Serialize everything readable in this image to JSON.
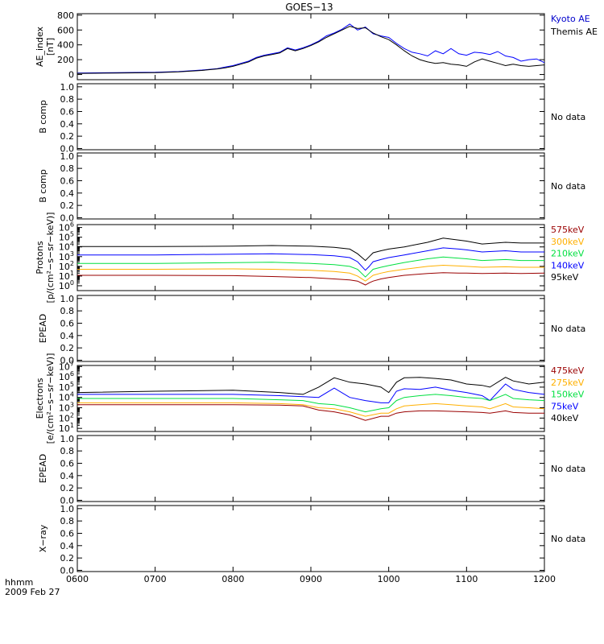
{
  "title": "GOES−13",
  "time_axis": {
    "ticks": [
      "0600",
      "0700",
      "0800",
      "0900",
      "1000",
      "1100",
      "1200"
    ],
    "range_hours": [
      6,
      12
    ],
    "label_line1": "hhmm",
    "label_line2": "2009 Feb 27"
  },
  "colors": {
    "black": "#000000",
    "blue": "#0000ff",
    "green": "#00e040",
    "orange": "#ffb000",
    "red": "#9a0000",
    "kyoto_legend": "#0000cc"
  },
  "chart_data": [
    {
      "id": "ae",
      "type": "line",
      "ylabel_line1": "AE_index",
      "ylabel_line2": "[nT]",
      "yscale": "linear",
      "ylim": [
        -70,
        820
      ],
      "yticks": [
        800,
        600,
        400,
        200,
        0
      ],
      "side_labels": [
        {
          "text": "Kyoto AE",
          "color": "#0000cc"
        },
        {
          "text": "Themis AE",
          "color": "#000000"
        }
      ],
      "series": [
        {
          "name": "Kyoto AE",
          "color": "#0000ff",
          "x": [
            6.0,
            6.5,
            7.0,
            7.3,
            7.6,
            7.8,
            7.9,
            8.0,
            8.1,
            8.2,
            8.3,
            8.4,
            8.5,
            8.6,
            8.7,
            8.8,
            8.9,
            9.0,
            9.1,
            9.2,
            9.3,
            9.4,
            9.5,
            9.6,
            9.7,
            9.8,
            9.9,
            10.0,
            10.1,
            10.2,
            10.3,
            10.4,
            10.5,
            10.6,
            10.7,
            10.8,
            10.9,
            11.0,
            11.1,
            11.2,
            11.3,
            11.4,
            11.5,
            11.6,
            11.7,
            11.8,
            11.9,
            12.0
          ],
          "y": [
            20,
            25,
            30,
            40,
            60,
            80,
            100,
            120,
            150,
            180,
            230,
            260,
            280,
            300,
            360,
            330,
            360,
            400,
            450,
            520,
            560,
            610,
            680,
            600,
            640,
            550,
            520,
            500,
            420,
            350,
            300,
            280,
            250,
            320,
            280,
            350,
            280,
            260,
            300,
            290,
            270,
            310,
            250,
            230,
            180,
            200,
            210,
            160
          ]
        },
        {
          "name": "Themis AE",
          "color": "#000000",
          "x": [
            6.0,
            6.5,
            7.0,
            7.3,
            7.6,
            7.8,
            7.9,
            8.0,
            8.1,
            8.2,
            8.3,
            8.4,
            8.5,
            8.6,
            8.7,
            8.8,
            8.9,
            9.0,
            9.1,
            9.2,
            9.3,
            9.4,
            9.5,
            9.6,
            9.7,
            9.8,
            9.9,
            10.0,
            10.1,
            10.2,
            10.3,
            10.4,
            10.5,
            10.6,
            10.7,
            10.8,
            10.9,
            11.0,
            11.1,
            11.2,
            11.3,
            11.4,
            11.5,
            11.6,
            11.7,
            11.8,
            11.9,
            12.0
          ],
          "y": [
            15,
            20,
            25,
            35,
            55,
            75,
            90,
            110,
            140,
            170,
            220,
            250,
            270,
            290,
            350,
            320,
            350,
            390,
            440,
            500,
            550,
            600,
            650,
            620,
            630,
            560,
            510,
            470,
            400,
            320,
            250,
            200,
            170,
            150,
            160,
            140,
            130,
            110,
            170,
            210,
            180,
            150,
            120,
            140,
            120,
            110,
            120,
            130
          ]
        }
      ]
    },
    {
      "id": "bcomp1",
      "type": "line",
      "ylabel_line1": "B comp",
      "ylabel_line2": "",
      "yscale": "linear",
      "ylim": [
        -0.02,
        1.05
      ],
      "yticks": [
        "1.0",
        "0.8",
        "0.6",
        "0.4",
        "0.2",
        "0.0"
      ],
      "side_labels": [
        {
          "text": "No data",
          "color": "#000000"
        }
      ],
      "series": []
    },
    {
      "id": "bcomp2",
      "type": "line",
      "ylabel_line1": "B comp",
      "ylabel_line2": "",
      "yscale": "linear",
      "ylim": [
        -0.02,
        1.05
      ],
      "yticks": [
        "1.0",
        "0.8",
        "0.6",
        "0.4",
        "0.2",
        "0.0"
      ],
      "side_labels": [
        {
          "text": "No data",
          "color": "#000000"
        }
      ],
      "series": []
    },
    {
      "id": "protons",
      "type": "line",
      "ylabel_line1": "Protons",
      "ylabel_line2": "[p/(cm²−s−sr−keV)]",
      "yscale": "log",
      "ylim_exp": [
        -0.5,
        6.3
      ],
      "yticks_exp": [
        6,
        5,
        4,
        3,
        2,
        1,
        0
      ],
      "side_labels": [
        {
          "text": "575keV",
          "color": "#9a0000"
        },
        {
          "text": "300keV",
          "color": "#ffb000"
        },
        {
          "text": "210keV",
          "color": "#00e040"
        },
        {
          "text": "140keV",
          "color": "#0000ff"
        },
        {
          "text": "95keV",
          "color": "#000000"
        }
      ],
      "series": [
        {
          "name": "95keV",
          "color": "#000000",
          "x": [
            6.0,
            7.0,
            8.0,
            8.5,
            9.0,
            9.3,
            9.5,
            9.6,
            9.7,
            9.75,
            9.8,
            9.9,
            10.0,
            10.2,
            10.5,
            10.7,
            10.9,
            11.0,
            11.2,
            11.5,
            11.7,
            12.0
          ],
          "y": [
            11000,
            11000,
            12000,
            14000,
            12000,
            9000,
            6000,
            2000,
            400,
            1000,
            2500,
            4000,
            6000,
            10000,
            30000,
            80000,
            50000,
            40000,
            20000,
            30000,
            25000,
            25000
          ]
        },
        {
          "name": "140keV",
          "color": "#0000ff",
          "x": [
            6.0,
            7.0,
            8.0,
            8.5,
            9.0,
            9.3,
            9.5,
            9.6,
            9.7,
            9.75,
            9.8,
            9.9,
            10.0,
            10.2,
            10.5,
            10.7,
            10.9,
            11.0,
            11.2,
            11.5,
            11.7,
            12.0
          ],
          "y": [
            1500,
            1500,
            1800,
            2000,
            1600,
            1200,
            800,
            300,
            40,
            100,
            300,
            500,
            800,
            1500,
            4000,
            8000,
            6000,
            5000,
            3000,
            4000,
            3000,
            3000
          ]
        },
        {
          "name": "210keV",
          "color": "#00e040",
          "x": [
            6.0,
            7.0,
            8.0,
            8.5,
            9.0,
            9.3,
            9.5,
            9.6,
            9.7,
            9.75,
            9.8,
            9.9,
            10.0,
            10.2,
            10.5,
            10.7,
            10.9,
            11.0,
            11.2,
            11.5,
            11.7,
            12.0
          ],
          "y": [
            200,
            200,
            240,
            260,
            200,
            150,
            100,
            50,
            8,
            20,
            50,
            80,
            120,
            250,
            600,
            900,
            700,
            600,
            400,
            500,
            400,
            400
          ]
        },
        {
          "name": "300keV",
          "color": "#ffb000",
          "x": [
            6.0,
            7.0,
            8.0,
            8.5,
            9.0,
            9.3,
            9.5,
            9.6,
            9.7,
            9.75,
            9.8,
            9.9,
            10.0,
            10.2,
            10.5,
            10.7,
            10.9,
            11.0,
            11.2,
            11.5,
            11.7,
            12.0
          ],
          "y": [
            50,
            50,
            55,
            50,
            40,
            30,
            20,
            10,
            3,
            6,
            12,
            20,
            30,
            50,
            100,
            130,
            110,
            100,
            80,
            90,
            80,
            80
          ]
        },
        {
          "name": "575keV",
          "color": "#9a0000",
          "x": [
            6.0,
            7.0,
            8.0,
            8.5,
            9.0,
            9.3,
            9.5,
            9.6,
            9.7,
            9.75,
            9.8,
            9.9,
            10.0,
            10.2,
            10.5,
            10.7,
            10.9,
            11.0,
            11.2,
            11.5,
            11.7,
            12.0
          ],
          "y": [
            12,
            12,
            11,
            9,
            7,
            5,
            4,
            3,
            1.2,
            2,
            3,
            5,
            7,
            12,
            18,
            22,
            20,
            20,
            18,
            20,
            18,
            20
          ]
        }
      ]
    },
    {
      "id": "epead1",
      "type": "line",
      "ylabel_line1": "EPEAD",
      "ylabel_line2": "",
      "yscale": "linear",
      "ylim": [
        -0.02,
        1.05
      ],
      "yticks": [
        "1.0",
        "0.8",
        "0.6",
        "0.4",
        "0.2",
        "0.0"
      ],
      "side_labels": [
        {
          "text": "No data",
          "color": "#000000"
        }
      ],
      "series": []
    },
    {
      "id": "electrons",
      "type": "line",
      "ylabel_line1": "Electrons",
      "ylabel_line2": "[e/(cm²−s−sr−keV)]",
      "yscale": "log",
      "ylim_exp": [
        0.7,
        7.1
      ],
      "yticks_exp": [
        7,
        6,
        5,
        4,
        3,
        2,
        1
      ],
      "side_labels": [
        {
          "text": "475keV",
          "color": "#9a0000"
        },
        {
          "text": "275keV",
          "color": "#ffb000"
        },
        {
          "text": "150keV",
          "color": "#00e040"
        },
        {
          "text": "75keV",
          "color": "#0000ff"
        },
        {
          "text": "40keV",
          "color": "#000000"
        }
      ],
      "series": [
        {
          "name": "40keV",
          "color": "#000000",
          "x": [
            6.0,
            7.0,
            8.0,
            8.6,
            8.9,
            9.1,
            9.3,
            9.5,
            9.7,
            9.9,
            10.0,
            10.1,
            10.2,
            10.4,
            10.6,
            10.8,
            11.0,
            11.2,
            11.3,
            11.5,
            11.6,
            11.8,
            12.0
          ],
          "y": [
            30000,
            40000,
            50000,
            30000,
            20000,
            100000,
            800000,
            300000,
            200000,
            100000,
            30000,
            300000,
            800000,
            900000,
            700000,
            500000,
            200000,
            150000,
            100000,
            900000,
            400000,
            200000,
            300000
          ]
        },
        {
          "name": "75keV",
          "color": "#0000ff",
          "x": [
            6.0,
            7.0,
            8.0,
            8.6,
            8.9,
            9.1,
            9.3,
            9.5,
            9.7,
            9.9,
            10.0,
            10.1,
            10.2,
            10.4,
            10.6,
            10.8,
            11.0,
            11.2,
            11.3,
            11.5,
            11.6,
            11.8,
            12.0
          ],
          "y": [
            20000,
            20000,
            20000,
            15000,
            12000,
            10000,
            80000,
            10000,
            5000,
            3000,
            3000,
            40000,
            70000,
            60000,
            100000,
            50000,
            30000,
            15000,
            5000,
            200000,
            60000,
            30000,
            20000
          ]
        },
        {
          "name": "150keV",
          "color": "#00e040",
          "x": [
            6.0,
            7.0,
            8.0,
            8.6,
            8.9,
            9.1,
            9.3,
            9.5,
            9.7,
            9.9,
            10.0,
            10.1,
            10.2,
            10.4,
            10.6,
            10.8,
            11.0,
            11.2,
            11.3,
            11.5,
            11.6,
            11.8,
            12.0
          ],
          "y": [
            8000,
            8000,
            8000,
            6000,
            5000,
            2500,
            2000,
            1000,
            400,
            800,
            1000,
            5000,
            10000,
            15000,
            20000,
            15000,
            10000,
            8000,
            5000,
            20000,
            8000,
            6000,
            5000
          ]
        },
        {
          "name": "275keV",
          "color": "#ffb000",
          "x": [
            6.0,
            7.0,
            8.0,
            8.6,
            8.9,
            9.1,
            9.3,
            9.5,
            9.7,
            9.9,
            10.0,
            10.1,
            10.2,
            10.4,
            10.6,
            10.8,
            11.0,
            11.2,
            11.3,
            11.5,
            11.6,
            11.8,
            12.0
          ],
          "y": [
            3000,
            3000,
            3000,
            2500,
            2000,
            1000,
            800,
            400,
            150,
            300,
            300,
            800,
            1500,
            2000,
            2500,
            2000,
            1500,
            1200,
            800,
            2500,
            1200,
            1000,
            800
          ]
        },
        {
          "name": "475keV",
          "color": "#9a0000",
          "x": [
            6.0,
            7.0,
            8.0,
            8.6,
            8.9,
            9.1,
            9.3,
            9.5,
            9.7,
            9.9,
            10.0,
            10.1,
            10.2,
            10.4,
            10.6,
            10.8,
            11.0,
            11.2,
            11.3,
            11.5,
            11.6,
            11.8,
            12.0
          ],
          "y": [
            2000,
            2000,
            2000,
            1800,
            1500,
            600,
            400,
            200,
            60,
            150,
            150,
            300,
            400,
            500,
            500,
            450,
            400,
            350,
            300,
            500,
            350,
            300,
            300
          ]
        }
      ]
    },
    {
      "id": "epead2",
      "type": "line",
      "ylabel_line1": "EPEAD",
      "ylabel_line2": "",
      "yscale": "linear",
      "ylim": [
        -0.02,
        1.05
      ],
      "yticks": [
        "1.0",
        "0.8",
        "0.6",
        "0.4",
        "0.2",
        "0.0"
      ],
      "side_labels": [
        {
          "text": "No data",
          "color": "#000000"
        }
      ],
      "series": []
    },
    {
      "id": "xray",
      "type": "line",
      "ylabel_line1": "X−ray",
      "ylabel_line2": "",
      "yscale": "linear",
      "ylim": [
        -0.02,
        1.05
      ],
      "yticks": [
        "1.0",
        "0.8",
        "0.6",
        "0.4",
        "0.2",
        "0.0"
      ],
      "side_labels": [
        {
          "text": "No data",
          "color": "#000000"
        }
      ],
      "series": []
    }
  ]
}
